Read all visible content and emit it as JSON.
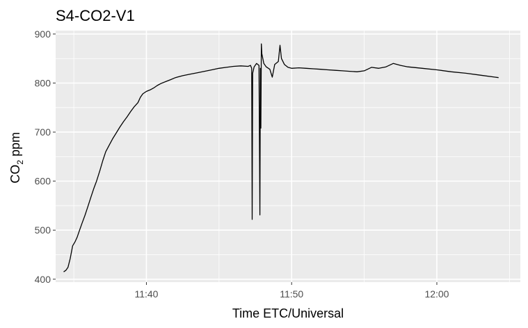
{
  "chart_data": {
    "type": "line",
    "title": "S4-CO2-V1",
    "xlabel": "Time ETC/Universal",
    "ylabel_main": "CO",
    "ylabel_sub": "2",
    "ylabel_tail": " ppm",
    "x_ticks": [
      "11:40",
      "11:50",
      "12:00"
    ],
    "y_ticks": [
      400,
      500,
      600,
      700,
      800,
      900
    ],
    "xlim": [
      "11:33:45",
      "12:05:45"
    ],
    "ylim": [
      394,
      907
    ],
    "grid": true,
    "panel_color": "#ebebeb",
    "grid_color": "#ffffff",
    "line_color": "#000000",
    "series": [
      {
        "points": [
          [
            "11:34:18",
            415
          ],
          [
            "11:34:27",
            418
          ],
          [
            "11:34:36",
            424
          ],
          [
            "11:34:45",
            442
          ],
          [
            "11:34:55",
            468
          ],
          [
            "11:35:05",
            476
          ],
          [
            "11:35:14",
            486
          ],
          [
            "11:35:24",
            500
          ],
          [
            "11:35:34",
            514
          ],
          [
            "11:35:46",
            530
          ],
          [
            "11:35:58",
            548
          ],
          [
            "11:36:10",
            566
          ],
          [
            "11:36:22",
            584
          ],
          [
            "11:36:34",
            600
          ],
          [
            "11:36:48",
            622
          ],
          [
            "11:37:00",
            642
          ],
          [
            "11:37:12",
            660
          ],
          [
            "11:37:26",
            673
          ],
          [
            "11:37:40",
            686
          ],
          [
            "11:37:55",
            698
          ],
          [
            "11:38:10",
            710
          ],
          [
            "11:38:25",
            721
          ],
          [
            "11:38:40",
            731
          ],
          [
            "11:38:55",
            742
          ],
          [
            "11:39:10",
            752
          ],
          [
            "11:39:25",
            760
          ],
          [
            "11:39:35",
            771
          ],
          [
            "11:39:45",
            778
          ],
          [
            "11:40:00",
            783
          ],
          [
            "11:40:15",
            786
          ],
          [
            "11:40:30",
            790
          ],
          [
            "11:40:45",
            795
          ],
          [
            "11:41:00",
            799
          ],
          [
            "11:41:20",
            803
          ],
          [
            "11:41:40",
            807
          ],
          [
            "11:42:00",
            811
          ],
          [
            "11:42:30",
            815
          ],
          [
            "11:43:00",
            818
          ],
          [
            "11:43:30",
            821
          ],
          [
            "11:44:00",
            824
          ],
          [
            "11:44:30",
            827
          ],
          [
            "11:45:00",
            830
          ],
          [
            "11:45:30",
            832
          ],
          [
            "11:46:00",
            834
          ],
          [
            "11:46:30",
            835
          ],
          [
            "11:47:00",
            834
          ],
          [
            "11:47:10",
            836
          ],
          [
            "11:47:15",
            830
          ],
          [
            "11:47:17",
            522
          ],
          [
            "11:47:19",
            820
          ],
          [
            "11:47:25",
            833
          ],
          [
            "11:47:35",
            840
          ],
          [
            "11:47:45",
            836
          ],
          [
            "11:47:49",
            531
          ],
          [
            "11:47:51",
            830
          ],
          [
            "11:47:53",
            708
          ],
          [
            "11:47:55",
            880
          ],
          [
            "11:47:57",
            860
          ],
          [
            "11:48:05",
            840
          ],
          [
            "11:48:15",
            833
          ],
          [
            "11:48:30",
            828
          ],
          [
            "11:48:40",
            812
          ],
          [
            "11:48:50",
            838
          ],
          [
            "11:49:05",
            844
          ],
          [
            "11:49:12",
            877
          ],
          [
            "11:49:18",
            850
          ],
          [
            "11:49:30",
            838
          ],
          [
            "11:49:45",
            832
          ],
          [
            "11:50:00",
            830
          ],
          [
            "11:50:30",
            831
          ],
          [
            "11:51:00",
            830
          ],
          [
            "11:51:30",
            829
          ],
          [
            "11:52:00",
            828
          ],
          [
            "11:52:30",
            827
          ],
          [
            "11:53:00",
            826
          ],
          [
            "11:53:30",
            825
          ],
          [
            "11:54:00",
            824
          ],
          [
            "11:54:30",
            823
          ],
          [
            "11:55:00",
            825
          ],
          [
            "11:55:30",
            832
          ],
          [
            "11:56:00",
            830
          ],
          [
            "11:56:30",
            833
          ],
          [
            "11:57:00",
            840
          ],
          [
            "11:57:30",
            836
          ],
          [
            "11:58:00",
            833
          ],
          [
            "11:59:00",
            830
          ],
          [
            "12:00:00",
            827
          ],
          [
            "12:01:00",
            823
          ],
          [
            "12:02:00",
            820
          ],
          [
            "12:03:00",
            816
          ],
          [
            "12:04:00",
            812
          ],
          [
            "12:04:15",
            811
          ]
        ]
      }
    ]
  }
}
